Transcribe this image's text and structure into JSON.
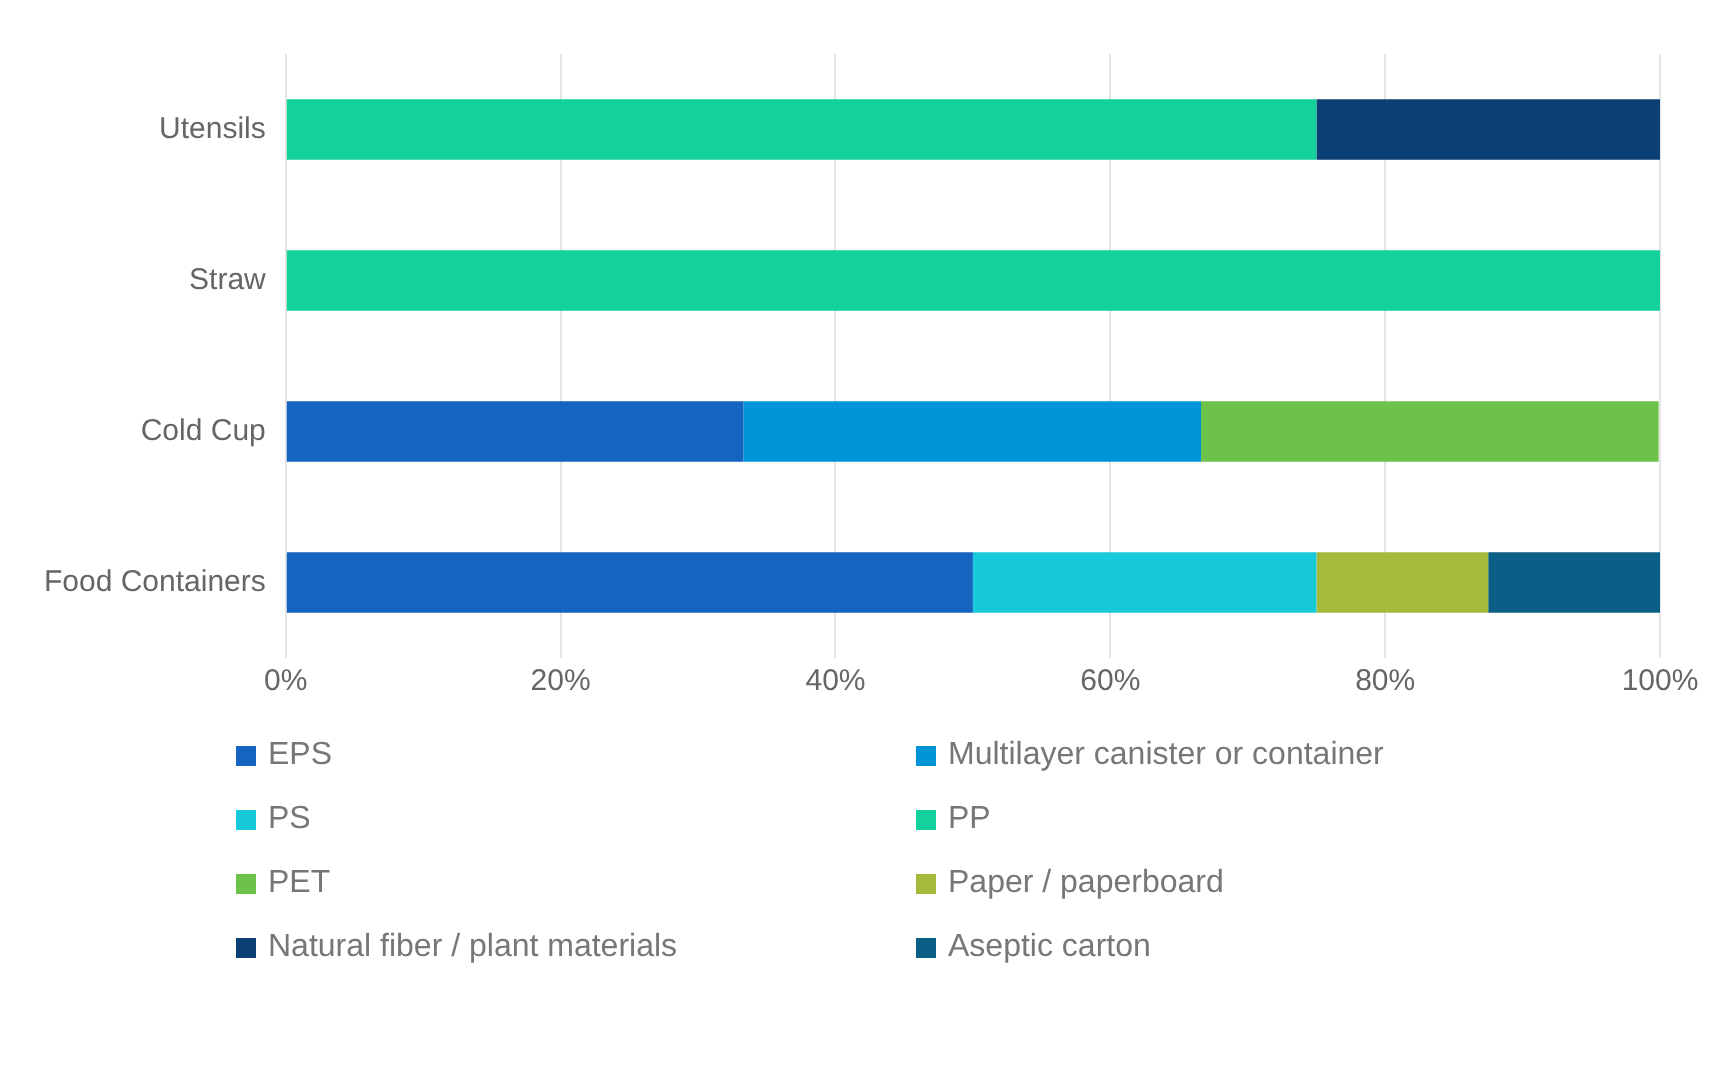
{
  "chart_data": {
    "type": "bar",
    "orientation": "horizontal",
    "stacked": true,
    "categories": [
      "Utensils",
      "Straw",
      "Cold Cup",
      "Food Containers"
    ],
    "series": [
      {
        "name": "EPS",
        "color": "#1565c0",
        "values": [
          0,
          0,
          33.3,
          50
        ]
      },
      {
        "name": "Multilayer canister or container",
        "color": "#0095d6",
        "values": [
          0,
          0,
          33.3,
          0
        ]
      },
      {
        "name": "PS",
        "color": "#17c9d9",
        "values": [
          0,
          0,
          0,
          25
        ]
      },
      {
        "name": "PP",
        "color": "#12d19a",
        "values": [
          75,
          100,
          0,
          0
        ]
      },
      {
        "name": "PET",
        "color": "#6cc24a",
        "values": [
          0,
          0,
          33.3,
          0
        ]
      },
      {
        "name": "Paper / paperboard",
        "color": "#a7b93a",
        "values": [
          0,
          0,
          0,
          12.5
        ]
      },
      {
        "name": "Natural fiber / plant materials",
        "color": "#0c3f73",
        "values": [
          25,
          0,
          0,
          0
        ]
      },
      {
        "name": "Aseptic carton",
        "color": "#0b5e86",
        "values": [
          0,
          0,
          0,
          12.5
        ]
      }
    ],
    "xlim": [
      0,
      100
    ],
    "xticks": [
      {
        "value": 0,
        "label": "0%"
      },
      {
        "value": 20,
        "label": "20%"
      },
      {
        "value": 40,
        "label": "40%"
      },
      {
        "value": 60,
        "label": "60%"
      },
      {
        "value": 80,
        "label": "80%"
      },
      {
        "value": 100,
        "label": "100%"
      }
    ],
    "grid": "x",
    "legend": "bottom"
  }
}
